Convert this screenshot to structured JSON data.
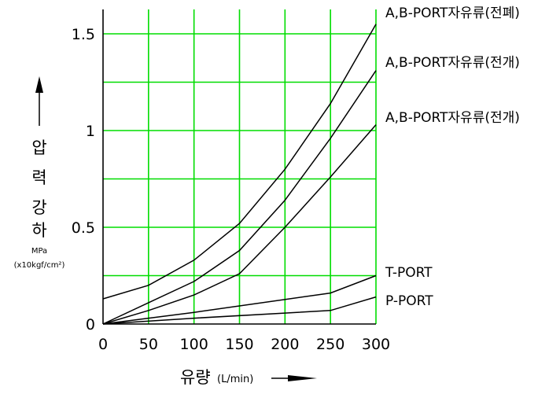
{
  "chart_data": {
    "type": "line",
    "xlabel": "유량",
    "xlabel_unit": "(L/min)",
    "ylabel_chars": [
      "압",
      "력",
      "강",
      "하"
    ],
    "ylabel_unit_top": "MPa",
    "ylabel_unit_bottom": "(x10kgf/cm²)",
    "xlim": [
      0,
      300
    ],
    "ylim": [
      0,
      1.5
    ],
    "x_ticks": [
      {
        "v": 0,
        "label": "0"
      },
      {
        "v": 50,
        "label": "50"
      },
      {
        "v": 100,
        "label": "100"
      },
      {
        "v": 150,
        "label": "150"
      },
      {
        "v": 200,
        "label": "200"
      },
      {
        "v": 250,
        "label": "250"
      },
      {
        "v": 300,
        "label": "300"
      }
    ],
    "y_ticks": [
      {
        "v": 0,
        "label": "0"
      },
      {
        "v": 0.5,
        "label": "0.5"
      },
      {
        "v": 1,
        "label": "1"
      },
      {
        "v": 1.5,
        "label": "1.5"
      }
    ],
    "y_grid": [
      0.25,
      0.5,
      0.75,
      1.0,
      1.25,
      1.5
    ],
    "grid": true,
    "grid_color": "#00dd00",
    "line_color": "#000000",
    "series": [
      {
        "name": "A,B-PORT자유류(전폐)",
        "x": [
          0,
          50,
          100,
          150,
          200,
          250,
          300
        ],
        "y": [
          0.13,
          0.2,
          0.33,
          0.52,
          0.8,
          1.14,
          1.55
        ]
      },
      {
        "name": "A,B-PORT자유류(전개)",
        "x": [
          0,
          50,
          100,
          150,
          200,
          250,
          300
        ],
        "y": [
          0.0,
          0.11,
          0.22,
          0.38,
          0.64,
          0.96,
          1.31
        ]
      },
      {
        "name": "A,B-PORT자유류(전개)",
        "x": [
          0,
          50,
          100,
          150,
          200,
          250,
          300
        ],
        "y": [
          0.0,
          0.07,
          0.15,
          0.26,
          0.5,
          0.76,
          1.03
        ]
      },
      {
        "name": "T-PORT",
        "x": [
          0,
          100,
          250,
          300
        ],
        "y": [
          0.0,
          0.06,
          0.16,
          0.25
        ]
      },
      {
        "name": "P-PORT",
        "x": [
          0,
          100,
          250,
          300
        ],
        "y": [
          0.0,
          0.03,
          0.07,
          0.14
        ]
      }
    ]
  }
}
